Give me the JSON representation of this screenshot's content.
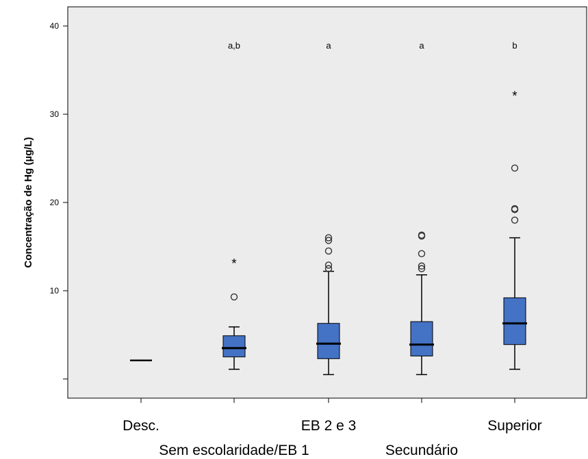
{
  "chart_data": {
    "type": "boxplot",
    "title": "",
    "xlabel": "",
    "ylabel": "Concentração de Hg (µg/L)",
    "ylim": [
      -2,
      43
    ],
    "yticks": [
      10,
      20,
      30,
      40
    ],
    "grid": false,
    "legend": "none",
    "colors": {
      "box_fill": "#4472c4",
      "plot_bg": "#ececec",
      "stroke": "#000000"
    },
    "categories": [
      "Desc.",
      "Sem escolaridade/EB 1",
      "EB 2 e 3",
      "Secundário",
      "Superior"
    ],
    "series": [
      {
        "category": "Desc.",
        "min": 2.1,
        "q1": 2.1,
        "median": 2.1,
        "q3": 2.1,
        "max": 2.1,
        "significance": "",
        "outliers": [],
        "extremes": []
      },
      {
        "category": "Sem escolaridade/EB 1",
        "min": 1.1,
        "q1": 2.5,
        "median": 3.5,
        "q3": 4.9,
        "max": 5.9,
        "significance": "a,b",
        "outliers": [
          9.3
        ],
        "extremes": [
          13.3
        ]
      },
      {
        "category": "EB 2 e 3",
        "min": 0.5,
        "q1": 2.3,
        "median": 4.0,
        "q3": 6.3,
        "max": 12.2,
        "significance": "a",
        "outliers": [
          12.5,
          12.9,
          14.5,
          15.7,
          16.0
        ],
        "extremes": []
      },
      {
        "category": "Secundário",
        "min": 0.5,
        "q1": 2.6,
        "median": 3.9,
        "q3": 6.5,
        "max": 11.8,
        "significance": "a",
        "outliers": [
          12.5,
          12.8,
          14.2,
          16.2,
          16.3
        ],
        "extremes": []
      },
      {
        "category": "Superior",
        "min": 1.1,
        "q1": 3.9,
        "median": 6.3,
        "q3": 9.2,
        "max": 16.0,
        "significance": "b",
        "outliers": [
          18.0,
          19.2,
          19.3,
          23.9
        ],
        "extremes": [
          32.3
        ]
      }
    ]
  }
}
